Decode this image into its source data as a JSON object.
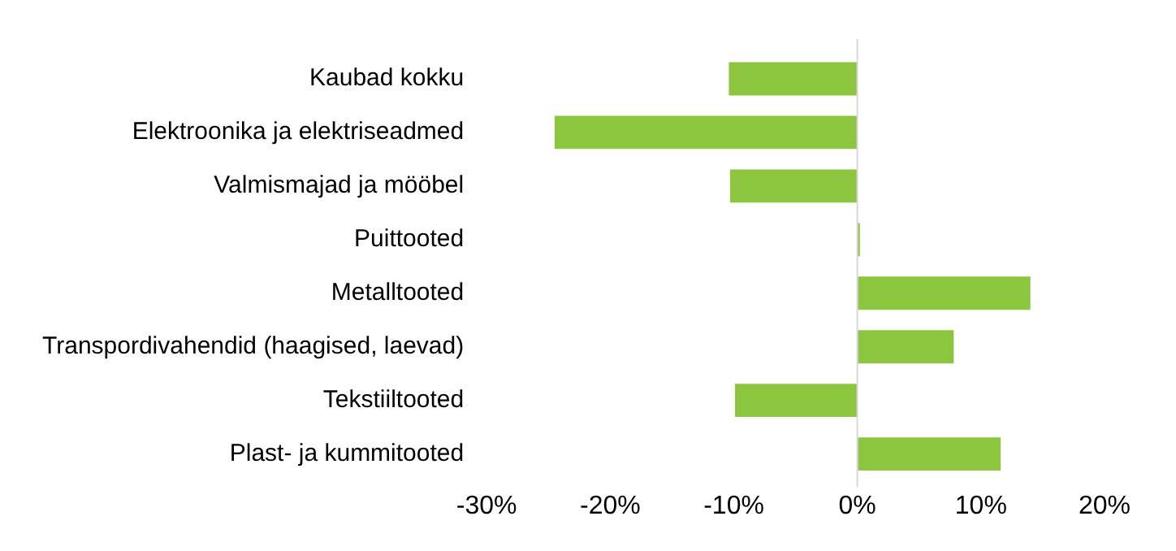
{
  "chart_data": {
    "type": "bar",
    "orientation": "horizontal",
    "categories": [
      "Kaubad kokku",
      "Elektroonika ja elektriseadmed",
      "Valmismajad ja mööbel",
      "Puittooted",
      "Metalltooted",
      "Transpordivahendid (haagised, laevad)",
      "Tekstiiltooted",
      "Plast- ja kummitooted"
    ],
    "values": [
      -10.4,
      -24.5,
      -10.3,
      0.2,
      14,
      7.8,
      -9.9,
      11.6
    ],
    "color": "#8cc63f",
    "xlim": [
      -30,
      20
    ],
    "xticks": [
      {
        "value": -30,
        "label": "-30%"
      },
      {
        "value": -20,
        "label": "-20%"
      },
      {
        "value": -10,
        "label": "-10%"
      },
      {
        "value": 0,
        "label": "0%"
      },
      {
        "value": 10,
        "label": "10%"
      },
      {
        "value": 20,
        "label": "20%"
      }
    ],
    "ref_lines": [
      {
        "axis": "x",
        "value": 0,
        "color": "#d9d9d9"
      }
    ],
    "grid": false,
    "legend": false
  }
}
